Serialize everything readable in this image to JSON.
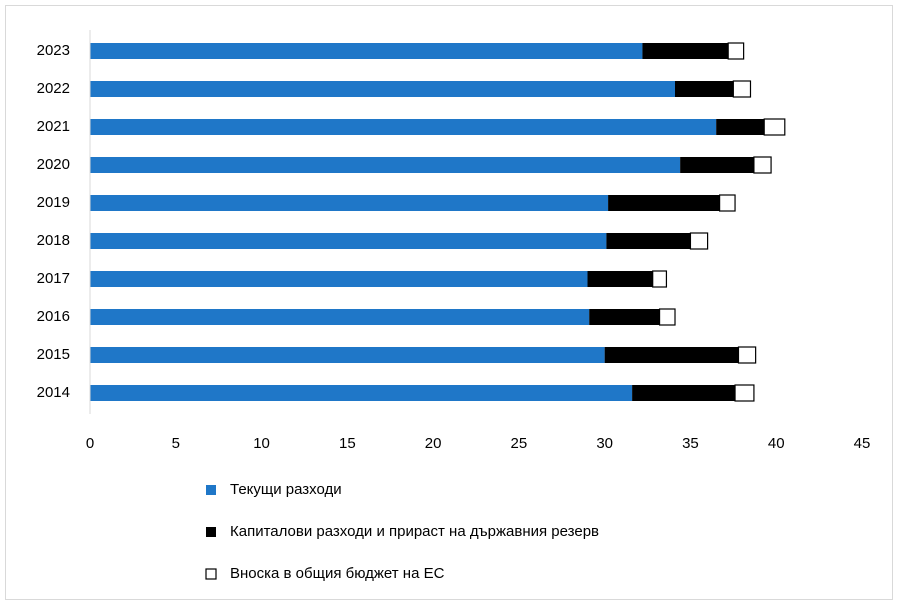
{
  "chart_data": {
    "type": "stacked_barh",
    "categories": [
      "2023",
      "2022",
      "2021",
      "2020",
      "2019",
      "2018",
      "2017",
      "2016",
      "2015",
      "2014"
    ],
    "series": [
      {
        "name": "Текущи разходи",
        "color": "#1f77c8",
        "values": [
          32.2,
          34.1,
          36.5,
          34.4,
          30.2,
          30.1,
          29.0,
          29.1,
          30.0,
          31.6
        ]
      },
      {
        "name": "Капиталови разходи и прираст на държавния резерв",
        "color": "#000000",
        "values": [
          5.0,
          3.4,
          2.8,
          4.3,
          6.5,
          4.9,
          3.8,
          4.1,
          7.8,
          6.0
        ]
      },
      {
        "name": "Вноска в общия бюджет на ЕС",
        "color": "#ffffff",
        "values": [
          0.9,
          1.0,
          1.2,
          1.0,
          0.9,
          1.0,
          0.8,
          0.9,
          1.0,
          1.1
        ]
      }
    ],
    "xlim": [
      0,
      45
    ],
    "xticks": [
      0,
      5,
      10,
      15,
      20,
      25,
      30,
      35,
      40,
      45
    ],
    "grid": false,
    "legend": "bottom"
  }
}
